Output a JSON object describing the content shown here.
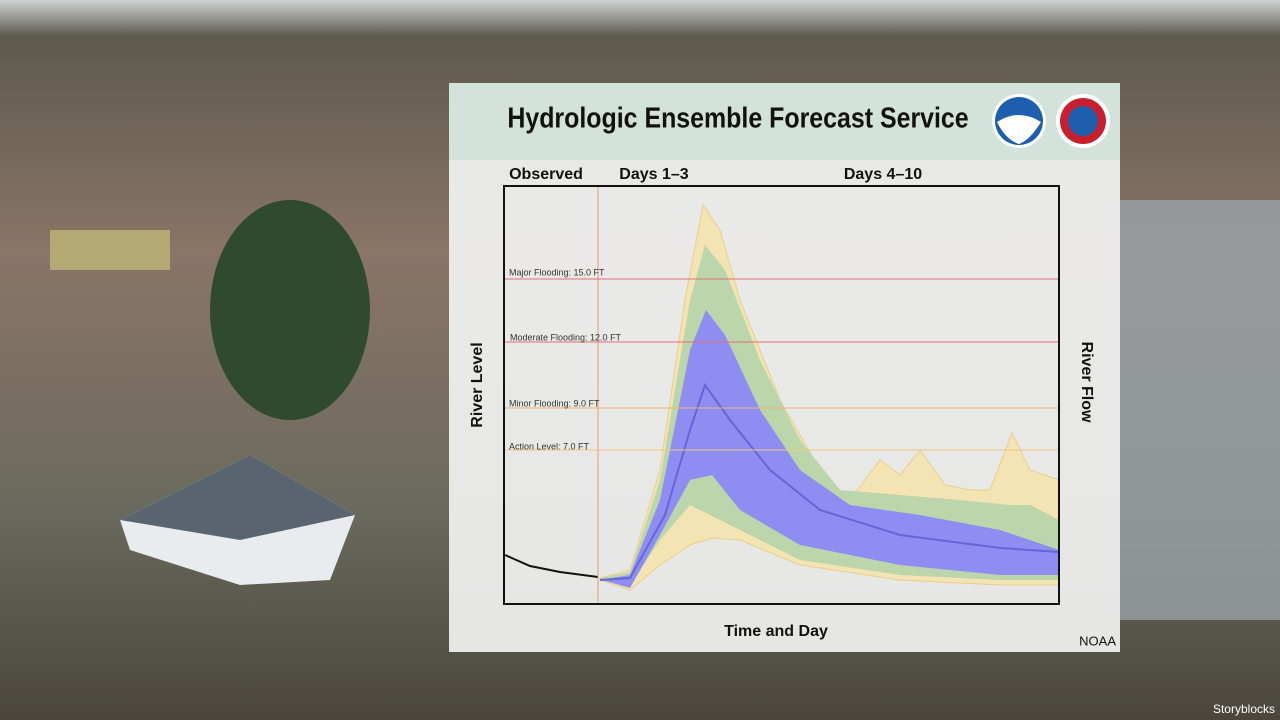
{
  "header": {
    "title": "Hydrologic Ensemble Forecast Service"
  },
  "periods": [
    "Observed",
    "Days 1–3",
    "Days 4–10"
  ],
  "thresholds": [
    "Major Flooding: 15.0 FT",
    "Moderate Flooding: 12.0 FT",
    "Minor Flooding: 9.0 FT",
    "Action Level: 7.0 FT"
  ],
  "axes": {
    "left": "River Level",
    "right": "River Flow",
    "bottom": "Time and Day"
  },
  "credit": "NOAA",
  "watermark": "Storyblocks"
}
